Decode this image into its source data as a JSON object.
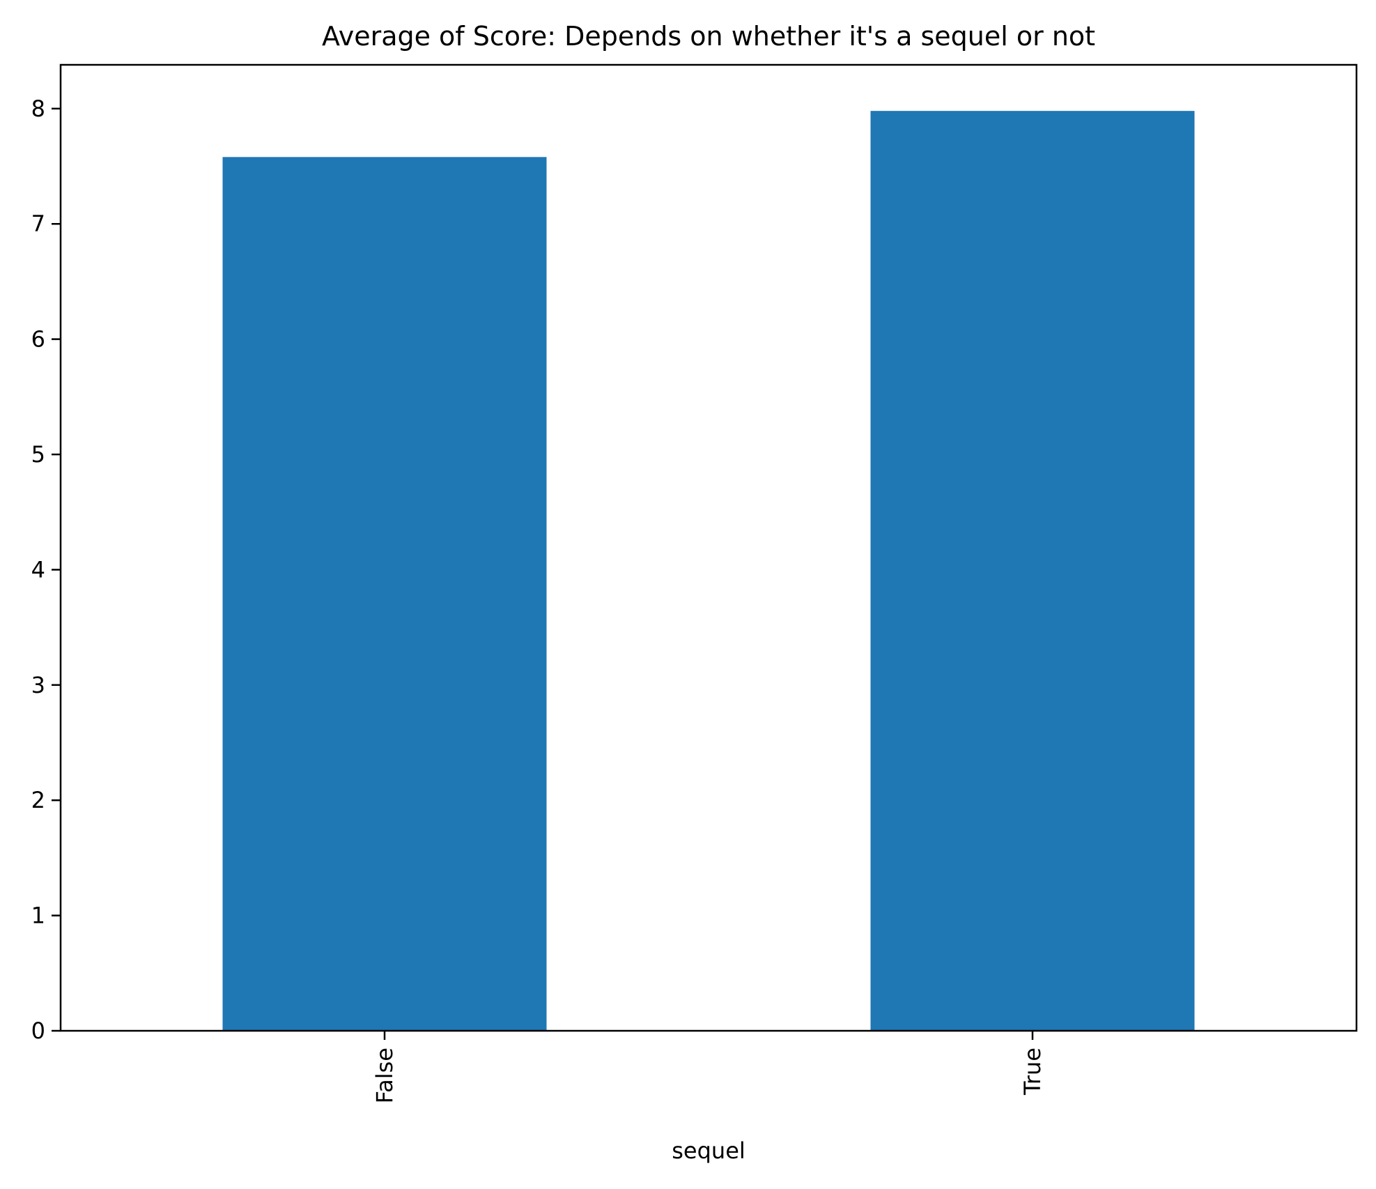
{
  "chart_data": {
    "type": "bar",
    "title": "Average of Score: Depends on whether it's a sequel or not",
    "xlabel": "sequel",
    "ylabel": "",
    "categories": [
      "False",
      "True"
    ],
    "values": [
      7.58,
      7.98
    ],
    "ylim": [
      0,
      8.38
    ],
    "yticks": [
      0,
      1,
      2,
      3,
      4,
      5,
      6,
      7,
      8
    ],
    "grid": false,
    "legend": "none",
    "bar_color": "#1f77b4"
  }
}
